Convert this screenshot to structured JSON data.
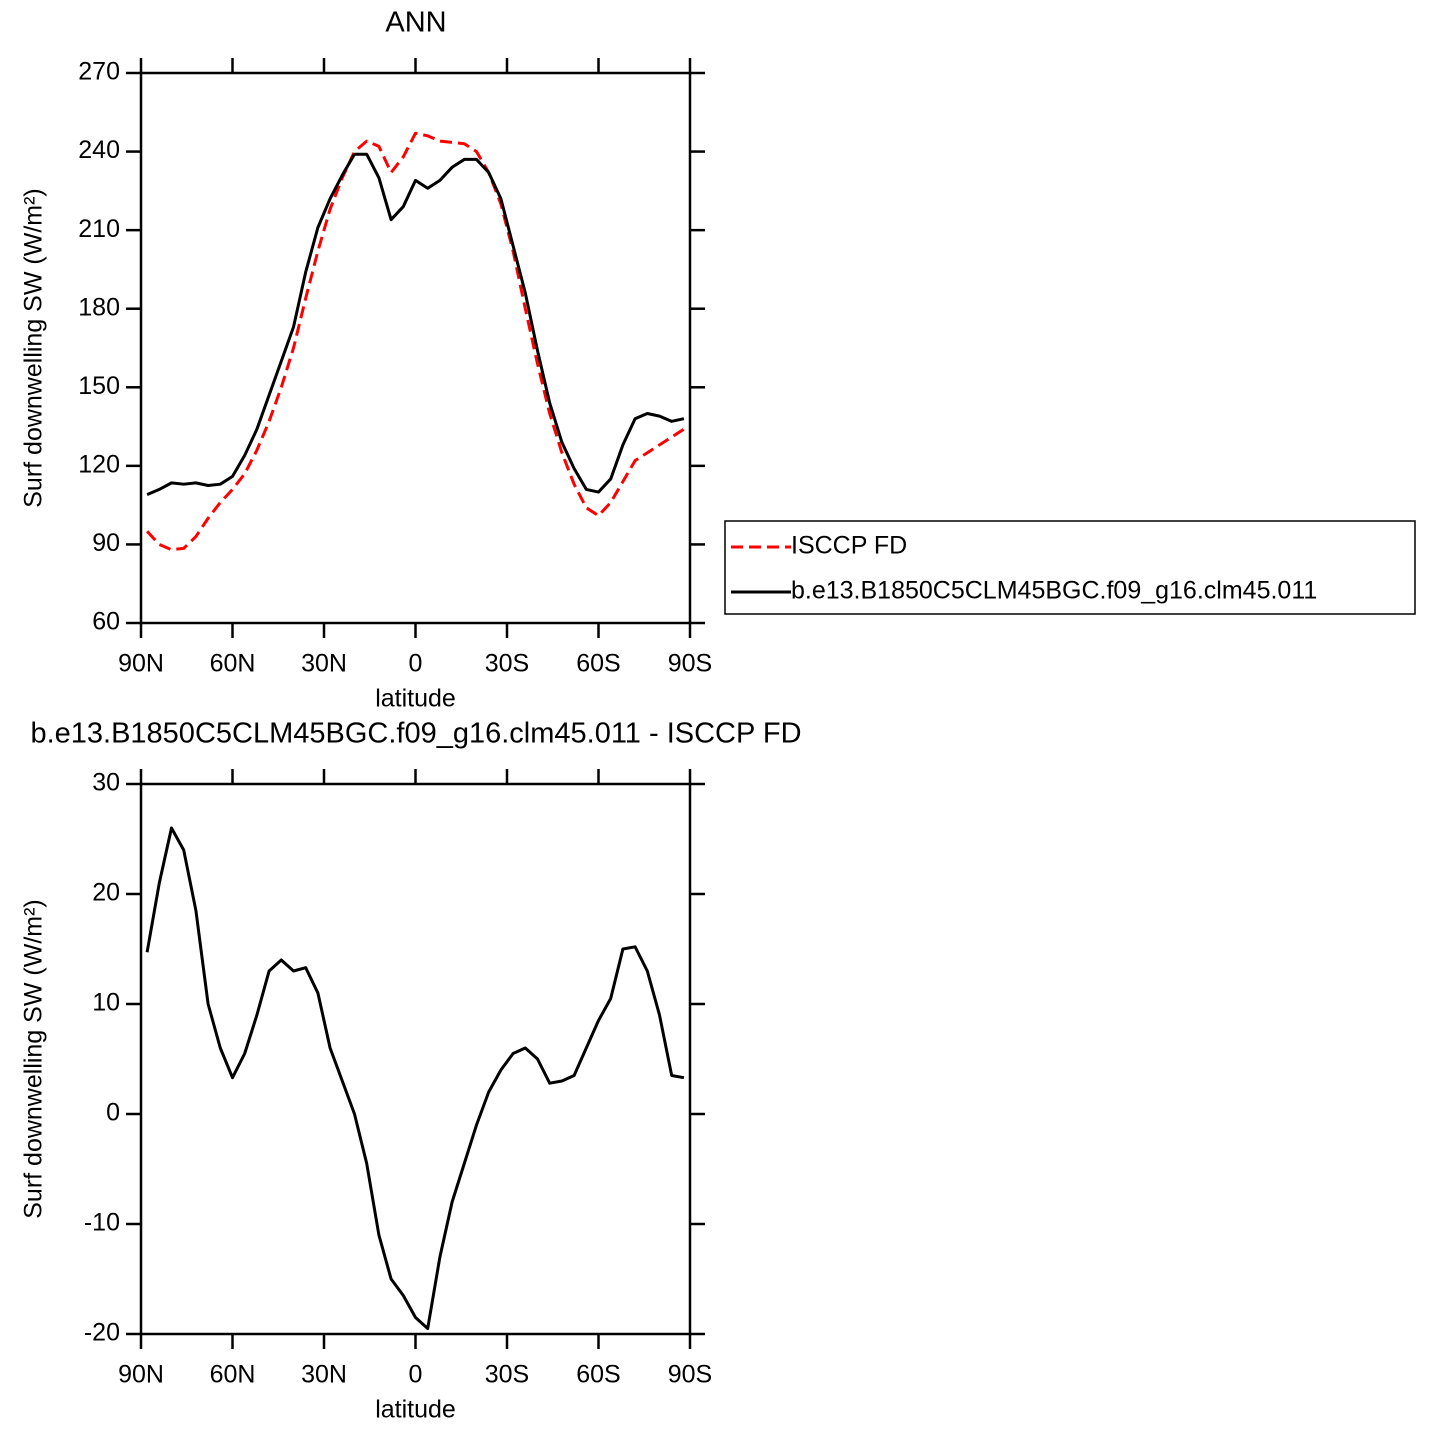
{
  "chart_data": [
    {
      "type": "line",
      "title": "ANN",
      "xlabel": "latitude",
      "ylabel": "Surf downwelling SW (W/m²)",
      "x": [
        88,
        84,
        80,
        76,
        72,
        68,
        64,
        60,
        56,
        52,
        48,
        44,
        40,
        36,
        32,
        28,
        24,
        20,
        16,
        12,
        8,
        4,
        0,
        -4,
        -8,
        -12,
        -16,
        -20,
        -24,
        -28,
        -32,
        -36,
        -40,
        -44,
        -48,
        -52,
        -56,
        -60,
        -64,
        -68,
        -72,
        -76,
        -80,
        -84,
        -88
      ],
      "xlim": [
        90,
        -90
      ],
      "xticks": [
        {
          "value": 90,
          "label": "90N"
        },
        {
          "value": 60,
          "label": "60N"
        },
        {
          "value": 30,
          "label": "30N"
        },
        0,
        {
          "value": -30,
          "label": "30S"
        },
        {
          "value": -60,
          "label": "60S"
        },
        {
          "value": -90,
          "label": "90S"
        }
      ],
      "ylim": [
        60,
        270
      ],
      "yticks": [
        60,
        90,
        120,
        150,
        180,
        210,
        240,
        270
      ],
      "legend": "right",
      "series": [
        {
          "name": "ISCCP FD",
          "color": "#ff0000",
          "dash": true,
          "values": [
            95,
            90,
            88,
            88.5,
            93,
            100,
            106,
            111,
            117,
            126,
            137,
            150,
            165,
            184,
            202,
            218,
            230,
            240,
            244,
            242,
            232,
            238,
            247,
            246,
            244,
            243.5,
            243,
            240,
            232,
            220,
            202,
            180,
            159,
            140,
            125,
            113,
            104,
            101,
            106,
            114,
            122,
            125,
            128,
            131,
            134
          ]
        },
        {
          "name": "b.e13.B1850C5CLM45BGC.f09_g16.clm45.011",
          "color": "#000000",
          "dash": false,
          "values": [
            109,
            111,
            113.5,
            113,
            113.5,
            112.5,
            113,
            116,
            124,
            134,
            147,
            160,
            173,
            194,
            211,
            222,
            231,
            239,
            239,
            230,
            214,
            219,
            229,
            226,
            229,
            234,
            237,
            237,
            232,
            222,
            204,
            186,
            164,
            144,
            129,
            119,
            111,
            110,
            115,
            128,
            138,
            140,
            139,
            137,
            138
          ]
        }
      ]
    },
    {
      "type": "line",
      "title": "b.e13.B1850C5CLM45BGC.f09_g16.clm45.011 - ISCCP FD",
      "xlabel": "latitude",
      "ylabel": "Surf downwelling SW (W/m²)",
      "x": [
        88,
        84,
        80,
        76,
        72,
        68,
        64,
        60,
        56,
        52,
        48,
        44,
        40,
        36,
        32,
        28,
        24,
        20,
        16,
        12,
        8,
        4,
        0,
        -4,
        -8,
        -12,
        -16,
        -20,
        -24,
        -28,
        -32,
        -36,
        -40,
        -44,
        -48,
        -52,
        -56,
        -60,
        -64,
        -68,
        -72,
        -76,
        -80,
        -84,
        -88
      ],
      "xlim": [
        90,
        -90
      ],
      "xticks": [
        {
          "value": 90,
          "label": "90N"
        },
        {
          "value": 60,
          "label": "60N"
        },
        {
          "value": 30,
          "label": "30N"
        },
        0,
        {
          "value": -30,
          "label": "30S"
        },
        {
          "value": -60,
          "label": "60S"
        },
        {
          "value": -90,
          "label": "90S"
        }
      ],
      "ylim": [
        -20,
        30
      ],
      "yticks": [
        -20,
        -10,
        0,
        10,
        20,
        30
      ],
      "series": [
        {
          "color": "#000000",
          "dash": false,
          "values": [
            14.7,
            21,
            26,
            24,
            18.5,
            10,
            6,
            3.3,
            5.5,
            9,
            13,
            14,
            13,
            13.3,
            11,
            6,
            3,
            0,
            -4.5,
            -11,
            -15,
            -16.5,
            -18.5,
            -19.5,
            -13,
            -8,
            -4.5,
            -1,
            2,
            4,
            5.5,
            6,
            5,
            2.8,
            3,
            3.5,
            6,
            8.5,
            10.5,
            15,
            15.2,
            13,
            9,
            3.5,
            3.3
          ]
        }
      ]
    }
  ]
}
